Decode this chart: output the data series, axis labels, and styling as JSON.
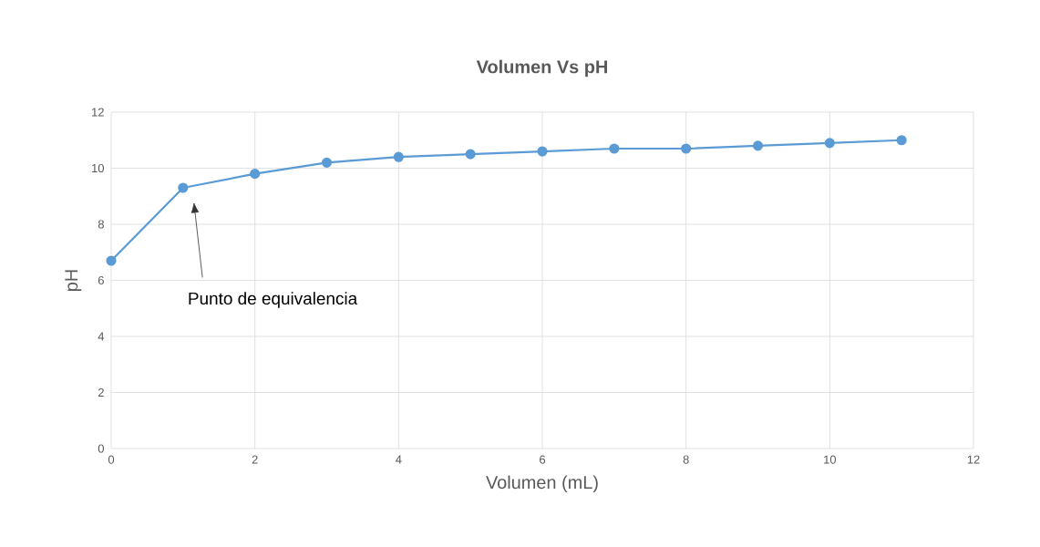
{
  "chart_data": {
    "type": "line",
    "title": "Volumen Vs pH",
    "xlabel": "Volumen (mL)",
    "ylabel": "pH",
    "x": [
      0,
      1,
      2,
      3,
      4,
      5,
      6,
      7,
      8,
      9,
      10,
      11
    ],
    "series": [
      {
        "color": "#5b9bd5",
        "values": [
          6.7,
          9.3,
          9.8,
          10.2,
          10.4,
          10.5,
          10.6,
          10.7,
          10.7,
          10.8,
          10.9,
          11.0
        ]
      }
    ],
    "xlim": [
      0,
      12
    ],
    "ylim": [
      0,
      12
    ],
    "xticks": [
      0,
      2,
      4,
      6,
      8,
      10,
      12
    ],
    "yticks": [
      0,
      2,
      4,
      6,
      8,
      10,
      12
    ],
    "grid": true,
    "marker": "circle",
    "line_style": "solid",
    "annotations": [
      "Punto de equivalencia"
    ]
  }
}
